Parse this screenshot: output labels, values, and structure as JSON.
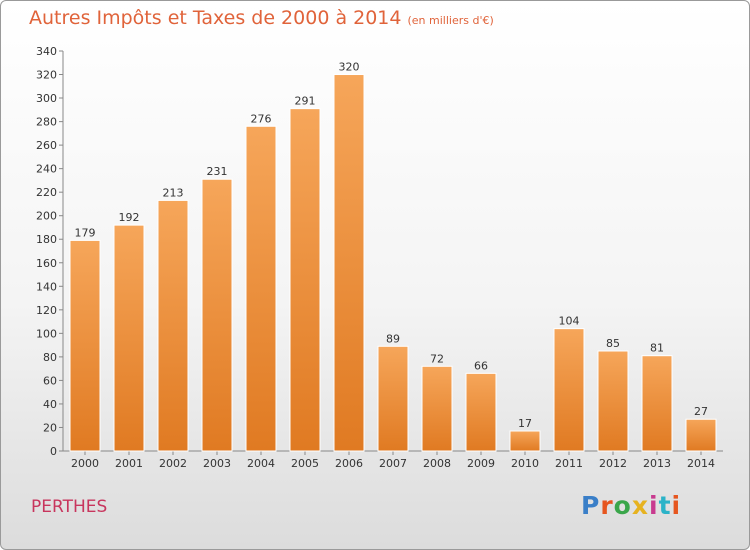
{
  "header": {
    "title": "Autres Impôts et Taxes de 2000 à 2014",
    "subtitle": "(en milliers d'€)"
  },
  "footer": {
    "commune": "PERTHES",
    "logo_text": "Proxiti"
  },
  "colors": {
    "title": "#e0633a",
    "commune": "#c8355d",
    "bar_light": "#f6a65a",
    "bar_dark": "#e07a22"
  },
  "chart_data": {
    "type": "bar",
    "categories": [
      "2000",
      "2001",
      "2002",
      "2003",
      "2004",
      "2005",
      "2006",
      "2007",
      "2008",
      "2009",
      "2010",
      "2011",
      "2012",
      "2013",
      "2014"
    ],
    "values": [
      179,
      192,
      213,
      231,
      276,
      291,
      320,
      89,
      72,
      66,
      17,
      104,
      85,
      81,
      27
    ],
    "title": "Autres Impôts et Taxes de 2000 à 2014",
    "subtitle": "(en milliers d'€)",
    "xlabel": "",
    "ylabel": "",
    "ylim": [
      0,
      340
    ],
    "yticks": [
      0,
      20,
      40,
      60,
      80,
      100,
      120,
      140,
      160,
      180,
      200,
      220,
      240,
      260,
      280,
      300,
      320,
      340
    ],
    "grid": false,
    "legend": "none"
  }
}
